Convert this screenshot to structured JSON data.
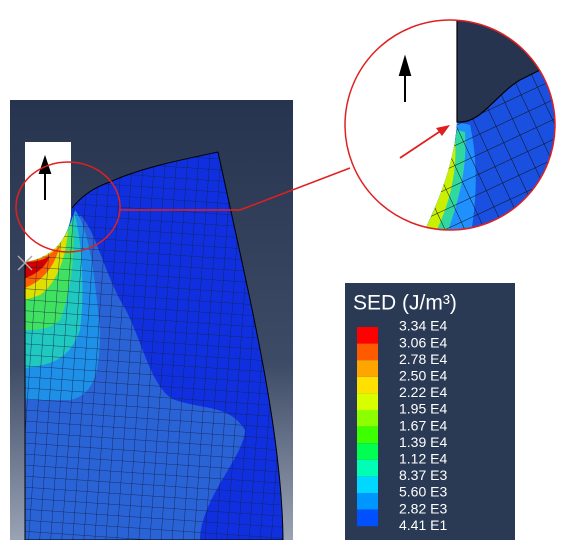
{
  "legend": {
    "title": "SED (J/m³)",
    "labels": [
      "3.34 E4",
      "3.06 E4",
      "2.78 E4",
      "2.50 E4",
      "2.22 E4",
      "1.95 E4",
      "1.67 E4",
      "1.39 E4",
      "1.12 E4",
      "8.37 E3",
      "5.60 E3",
      "2.82 E3",
      "4.41 E1"
    ],
    "band_colors": [
      "#ff0000",
      "#ff5a00",
      "#ffa500",
      "#ffe000",
      "#d8ff00",
      "#8cff00",
      "#3cff00",
      "#00ff50",
      "#00ffb4",
      "#00d8ff",
      "#0096ff",
      "#0050ff"
    ]
  }
}
